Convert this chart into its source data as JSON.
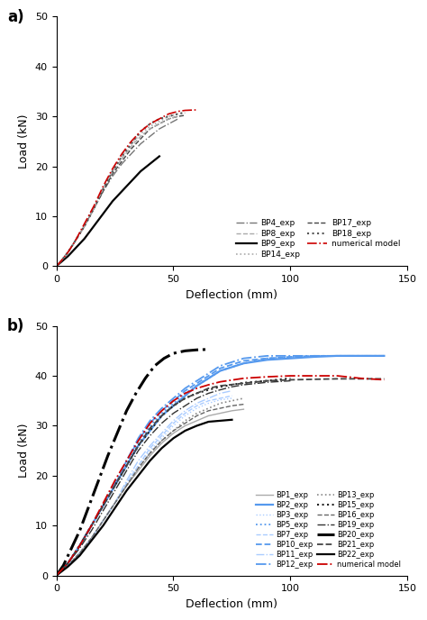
{
  "panel_a": {
    "xlabel": "Deflection (mm)",
    "ylabel": "Load (kN)",
    "xlim": [
      0,
      150
    ],
    "ylim": [
      0,
      50
    ],
    "xticks": [
      0,
      50,
      100,
      150
    ],
    "yticks": [
      0,
      10,
      20,
      30,
      40,
      50
    ],
    "curves": [
      {
        "label": "BP4_exp",
        "color": "#777777",
        "linestyle": "dashdot",
        "linewidth": 1.0,
        "x": [
          0,
          2,
          5,
          8,
          12,
          16,
          20,
          24,
          28,
          32,
          36,
          40,
          44,
          48,
          52
        ],
        "y": [
          0,
          1,
          2.8,
          5,
          8,
          11.5,
          15,
          18,
          20.5,
          22.5,
          24.5,
          26,
          27.5,
          28.5,
          29.5
        ]
      },
      {
        "label": "BP9_exp",
        "color": "#000000",
        "linestyle": "solid",
        "linewidth": 1.6,
        "x": [
          0,
          2,
          5,
          8,
          12,
          16,
          20,
          24,
          28,
          32,
          36,
          40,
          44
        ],
        "y": [
          0,
          0.8,
          2,
          3.5,
          5.5,
          8,
          10.5,
          13,
          15,
          17,
          19,
          20.5,
          22
        ]
      },
      {
        "label": "BP17_exp",
        "color": "#444444",
        "linestyle": "dashed",
        "linewidth": 1.0,
        "x": [
          0,
          2,
          5,
          8,
          12,
          16,
          20,
          24,
          28,
          32,
          36,
          40,
          44,
          48,
          52,
          55
        ],
        "y": [
          0,
          1,
          2.8,
          5,
          8,
          11.5,
          15,
          18.5,
          21,
          23.5,
          25.5,
          27.5,
          28.5,
          29.5,
          30,
          30.2
        ]
      },
      {
        "label": "BP8_exp",
        "color": "#aaaaaa",
        "linestyle": "dashed",
        "linewidth": 1.0,
        "x": [
          0,
          2,
          5,
          8,
          12,
          16,
          20,
          24,
          28,
          32,
          36,
          40,
          44,
          48,
          52
        ],
        "y": [
          0,
          1,
          2.8,
          5,
          8,
          11.5,
          15.5,
          19,
          21.5,
          24,
          26,
          27.5,
          28.5,
          29.5,
          30
        ]
      },
      {
        "label": "BP14_exp",
        "color": "#aaaaaa",
        "linestyle": "dotted",
        "linewidth": 1.2,
        "x": [
          0,
          2,
          5,
          8,
          12,
          16,
          20,
          24,
          28,
          32,
          36,
          40,
          44,
          48,
          52,
          55
        ],
        "y": [
          0,
          1,
          2.8,
          5,
          8,
          11.5,
          15.5,
          19,
          22,
          24.5,
          26.5,
          28,
          29,
          30,
          30.5,
          30.7
        ]
      },
      {
        "label": "BP18_exp",
        "color": "#555555",
        "linestyle": "dotted",
        "linewidth": 1.5,
        "x": [
          0,
          2,
          5,
          8,
          12,
          16,
          20,
          24,
          28,
          32,
          36,
          40,
          44,
          48,
          52,
          55
        ],
        "y": [
          0,
          1,
          2.8,
          5,
          8,
          11.5,
          15.5,
          19,
          22,
          24.5,
          27,
          28.5,
          29.5,
          30,
          30.5,
          30.8
        ]
      },
      {
        "label": "numerical model",
        "color": "#cc0000",
        "linestyle": "dashdot",
        "linewidth": 1.2,
        "x": [
          0,
          2,
          5,
          8,
          12,
          16,
          20,
          24,
          28,
          32,
          36,
          40,
          44,
          48,
          52,
          55,
          60
        ],
        "y": [
          0,
          1,
          2.8,
          5,
          8.5,
          12,
          16,
          19.5,
          22.5,
          25,
          27,
          28.5,
          29.5,
          30.5,
          31,
          31.2,
          31.3
        ]
      }
    ]
  },
  "panel_b": {
    "xlabel": "Deflection (mm)",
    "ylabel": "Load (kN)",
    "xlim": [
      0,
      150
    ],
    "ylim": [
      0,
      50
    ],
    "xticks": [
      0,
      50,
      100,
      150
    ],
    "yticks": [
      0,
      10,
      20,
      30,
      40,
      50
    ],
    "curves": [
      {
        "label": "BP1_exp",
        "color": "#aaaaaa",
        "linestyle": "solid",
        "linewidth": 1.0,
        "x": [
          0,
          5,
          10,
          15,
          20,
          25,
          30,
          35,
          40,
          45,
          50,
          55,
          60,
          65,
          70,
          75,
          80
        ],
        "y": [
          0,
          2,
          4.5,
          7.5,
          11,
          14.5,
          18,
          21,
          24,
          26.5,
          28.5,
          30,
          31,
          32,
          32.5,
          33,
          33.3
        ]
      },
      {
        "label": "BP2_exp",
        "color": "#5599ee",
        "linestyle": "solid",
        "linewidth": 1.6,
        "x": [
          0,
          5,
          10,
          15,
          20,
          25,
          30,
          35,
          40,
          45,
          50,
          55,
          60,
          65,
          70,
          80,
          90,
          100,
          110,
          120,
          130,
          140
        ],
        "y": [
          0,
          2.5,
          6,
          10,
          14,
          18,
          22,
          26,
          29,
          32,
          34,
          36,
          38,
          39.5,
          41,
          42.5,
          43.2,
          43.5,
          43.8,
          44,
          44,
          44
        ]
      },
      {
        "label": "BP3_exp",
        "color": "#aaccff",
        "linestyle": "dotted",
        "linewidth": 1.0,
        "x": [
          0,
          5,
          10,
          15,
          20,
          25,
          30,
          35,
          40,
          45,
          50,
          55,
          60,
          65,
          70,
          75
        ],
        "y": [
          0,
          2,
          4.5,
          7.5,
          11,
          14.5,
          18.5,
          22,
          25,
          27.5,
          30,
          32,
          33.5,
          34.5,
          35.2,
          35.5
        ]
      },
      {
        "label": "BP5_exp",
        "color": "#5599ee",
        "linestyle": "dotted",
        "linewidth": 1.3,
        "x": [
          0,
          5,
          10,
          15,
          20,
          25,
          30,
          35,
          40,
          45,
          50,
          55,
          60,
          65,
          70,
          80,
          90,
          100,
          110,
          120,
          130,
          140
        ],
        "y": [
          0,
          2.5,
          6,
          10,
          14,
          18,
          22.5,
          26.5,
          30,
          32.5,
          34.5,
          36.5,
          38,
          39.5,
          41,
          42.5,
          43.5,
          43.8,
          44,
          44,
          44,
          44
        ]
      },
      {
        "label": "BP7_exp",
        "color": "#aaccff",
        "linestyle": "dashed",
        "linewidth": 1.0,
        "x": [
          0,
          5,
          10,
          15,
          20,
          25,
          30,
          35,
          40,
          45,
          50,
          55,
          60,
          65,
          70,
          75
        ],
        "y": [
          0,
          2,
          4.5,
          7.5,
          11,
          14.5,
          18.5,
          22,
          25.5,
          28,
          30.5,
          32.5,
          34,
          35,
          35.5,
          36
        ]
      },
      {
        "label": "BP10_exp",
        "color": "#5599ee",
        "linestyle": "dashed",
        "linewidth": 1.3,
        "x": [
          0,
          5,
          10,
          15,
          20,
          25,
          30,
          35,
          40,
          45,
          50,
          55,
          60,
          65,
          70,
          80,
          90,
          100,
          110,
          120,
          130,
          140
        ],
        "y": [
          0,
          2.5,
          6,
          10,
          14,
          18,
          23,
          27,
          30.5,
          33,
          35,
          37,
          38.5,
          40,
          41.5,
          43,
          43.5,
          43.8,
          44,
          44,
          44,
          44
        ]
      },
      {
        "label": "BP11_exp",
        "color": "#aaccff",
        "linestyle": "dashdot",
        "linewidth": 1.0,
        "x": [
          0,
          5,
          10,
          15,
          20,
          25,
          30,
          35,
          40,
          45,
          50,
          55,
          60,
          65,
          70,
          75
        ],
        "y": [
          0,
          2,
          4.5,
          7.5,
          11,
          14.5,
          19,
          23,
          26,
          28.5,
          31,
          33,
          34.5,
          35.5,
          36.5,
          37
        ]
      },
      {
        "label": "BP12_exp",
        "color": "#5599ee",
        "linestyle": "dashdot",
        "linewidth": 1.3,
        "x": [
          0,
          5,
          10,
          15,
          20,
          25,
          30,
          35,
          40,
          45,
          50,
          55,
          60,
          65,
          70,
          80,
          90,
          100,
          110,
          120,
          130,
          140
        ],
        "y": [
          0,
          2.5,
          6,
          10,
          14,
          18.5,
          23,
          27.5,
          31,
          33.5,
          35.5,
          37.5,
          39,
          40.5,
          42,
          43.5,
          44,
          44,
          44,
          44,
          44,
          44
        ]
      },
      {
        "label": "BP13_exp",
        "color": "#888888",
        "linestyle": "dotted",
        "linewidth": 1.2,
        "x": [
          0,
          5,
          10,
          15,
          20,
          25,
          30,
          35,
          40,
          45,
          50,
          55,
          60,
          65,
          70,
          75,
          80
        ],
        "y": [
          0,
          2,
          4.5,
          7.5,
          11,
          14.5,
          18,
          21.5,
          24.5,
          27,
          29,
          31,
          32.5,
          33.5,
          34.5,
          35,
          35.5
        ]
      },
      {
        "label": "BP15_exp",
        "color": "#222222",
        "linestyle": "dotted",
        "linewidth": 1.5,
        "x": [
          0,
          5,
          10,
          15,
          20,
          25,
          30,
          35,
          40,
          45,
          50,
          55,
          60,
          65,
          70,
          75,
          80,
          90,
          100
        ],
        "y": [
          0,
          2.5,
          6,
          10,
          14,
          18,
          22,
          26,
          29,
          32,
          34,
          35.5,
          36.5,
          37.2,
          37.8,
          38.2,
          38.6,
          39,
          39.5
        ]
      },
      {
        "label": "BP16_exp",
        "color": "#666666",
        "linestyle": "dashed",
        "linewidth": 1.0,
        "x": [
          0,
          5,
          10,
          15,
          20,
          25,
          30,
          35,
          40,
          45,
          50,
          55,
          60,
          65,
          70,
          75,
          80
        ],
        "y": [
          0,
          2,
          4.5,
          7.5,
          11,
          14.5,
          18,
          21.5,
          24.5,
          27,
          29,
          30.5,
          32,
          33,
          33.5,
          34,
          34.3
        ]
      },
      {
        "label": "BP19_exp",
        "color": "#333333",
        "linestyle": "dashdot",
        "linewidth": 1.0,
        "x": [
          0,
          5,
          10,
          15,
          20,
          25,
          30,
          35,
          40,
          45,
          50,
          55,
          60,
          65,
          70,
          75,
          80,
          90,
          100
        ],
        "y": [
          0,
          2.5,
          5.5,
          9,
          13,
          17,
          21,
          25,
          28,
          30.5,
          32.5,
          34,
          35.5,
          36.5,
          37.2,
          37.8,
          38.2,
          38.7,
          39
        ]
      },
      {
        "label": "BP20_exp",
        "color": "#000000",
        "linestyle": "dashdot",
        "linewidth": 2.2,
        "x": [
          0,
          3,
          6,
          10,
          14,
          18,
          22,
          26,
          30,
          34,
          38,
          42,
          46,
          50,
          55,
          60,
          65
        ],
        "y": [
          0,
          2,
          5,
          9,
          14,
          19,
          24,
          28.5,
          33,
          36.5,
          39.5,
          42,
          43.5,
          44.5,
          45,
          45.2,
          45.3
        ]
      },
      {
        "label": "BP21_exp",
        "color": "#444444",
        "linestyle": "dashed",
        "linewidth": 1.3,
        "x": [
          0,
          5,
          10,
          15,
          20,
          25,
          30,
          35,
          40,
          45,
          50,
          55,
          60,
          65,
          70,
          80,
          90,
          100,
          110,
          120,
          130,
          140
        ],
        "y": [
          0,
          2.5,
          6,
          10,
          14,
          18,
          22,
          26,
          29.5,
          32,
          34,
          35.5,
          36.5,
          37.5,
          38,
          38.5,
          39,
          39.2,
          39.3,
          39.4,
          39.4,
          39.4
        ]
      },
      {
        "label": "BP22_exp",
        "color": "#000000",
        "linestyle": "solid",
        "linewidth": 1.6,
        "x": [
          0,
          5,
          10,
          15,
          20,
          25,
          30,
          35,
          40,
          45,
          50,
          55,
          60,
          65,
          70,
          75
        ],
        "y": [
          0,
          1.8,
          4,
          7,
          10,
          13.5,
          17,
          20,
          23,
          25.5,
          27.5,
          29,
          30,
          30.8,
          31,
          31.2
        ]
      },
      {
        "label": "numerical model",
        "color": "#cc0000",
        "linestyle": "dashdot",
        "linewidth": 1.3,
        "x": [
          0,
          5,
          10,
          15,
          20,
          25,
          30,
          35,
          40,
          45,
          50,
          55,
          60,
          65,
          70,
          80,
          90,
          100,
          110,
          120,
          130,
          140
        ],
        "y": [
          0,
          2.5,
          6,
          10,
          14.5,
          19,
          23,
          27,
          30.5,
          33,
          35,
          36.5,
          37.5,
          38.2,
          38.8,
          39.5,
          39.8,
          40,
          40,
          40,
          39.5,
          39.2
        ]
      }
    ],
    "legend_order": [
      "BP1_exp",
      "BP2_exp",
      "BP3_exp",
      "BP5_exp",
      "BP7_exp",
      "BP10_exp",
      "BP11_exp",
      "BP12_exp",
      "BP13_exp",
      "BP15_exp",
      "BP16_exp",
      "BP19_exp",
      "BP20_exp",
      "BP21_exp",
      "BP22_exp",
      "numerical model"
    ]
  }
}
